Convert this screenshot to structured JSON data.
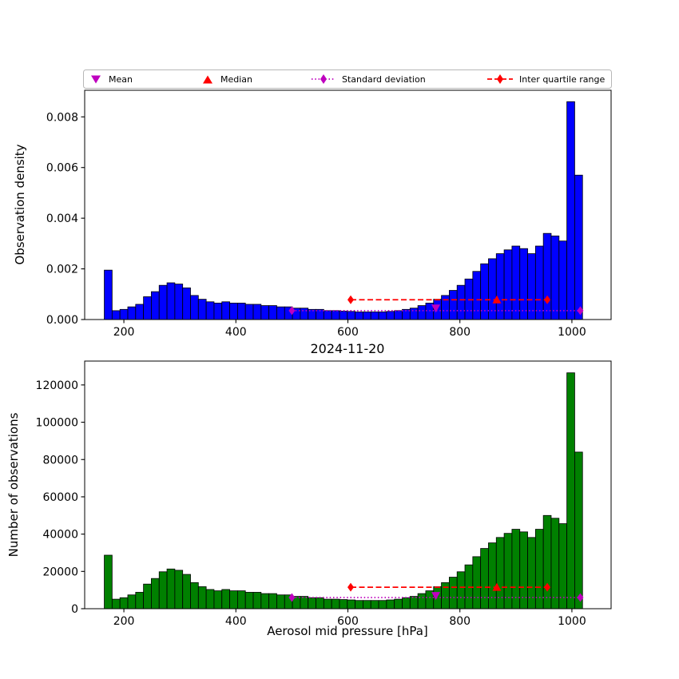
{
  "figure": {
    "title": "2024-11-20",
    "xlabel": "Aerosol mid pressure [hPa]",
    "top_ylabel": "Observation density",
    "bottom_ylabel": "Number of observations"
  },
  "legend": {
    "items": [
      {
        "label": "Mean",
        "marker": "triangle-down-icon",
        "color": "#bf00bf"
      },
      {
        "label": "Median",
        "marker": "triangle-up-icon",
        "color": "#ff0000"
      },
      {
        "label": "Standard deviation",
        "marker": "diamond-dotted-line-icon",
        "color": "#bf00bf"
      },
      {
        "label": "Inter quartile range",
        "marker": "diamond-dashed-line-icon",
        "color": "#ff0000"
      }
    ]
  },
  "chart_data": [
    {
      "type": "bar",
      "name": "observation-density-histogram",
      "ylabel": "Observation density",
      "bar_color": "#0000ff",
      "edge_color": "#000000",
      "bin_start": 165,
      "bin_width": 14,
      "values": [
        0.00195,
        0.00035,
        0.0004,
        0.0005,
        0.0006,
        0.0009,
        0.0011,
        0.00135,
        0.00145,
        0.0014,
        0.00125,
        0.00095,
        0.0008,
        0.0007,
        0.00065,
        0.0007,
        0.00065,
        0.00065,
        0.0006,
        0.0006,
        0.00055,
        0.00055,
        0.0005,
        0.0005,
        0.00045,
        0.00045,
        0.0004,
        0.0004,
        0.00035,
        0.00035,
        0.00033,
        0.00032,
        0.0003,
        0.0003,
        0.0003,
        0.0003,
        0.00032,
        0.00035,
        0.0004,
        0.00045,
        0.00055,
        0.00065,
        0.0008,
        0.00095,
        0.00115,
        0.00135,
        0.0016,
        0.0019,
        0.0022,
        0.0024,
        0.0026,
        0.00275,
        0.0029,
        0.0028,
        0.0026,
        0.0029,
        0.0034,
        0.0033,
        0.0031,
        0.0086,
        0.0057
      ],
      "xlim": [
        130,
        1070
      ],
      "ylim": [
        0,
        0.00905
      ],
      "xticks": [
        200,
        400,
        600,
        800,
        1000
      ],
      "xtick_labels": [
        "200",
        "400",
        "600",
        "800",
        "1000"
      ],
      "yticks": [
        0,
        0.002,
        0.004,
        0.006,
        0.008
      ],
      "ytick_labels": [
        "0.000",
        "0.002",
        "0.004",
        "0.006",
        "0.008"
      ],
      "stats": {
        "mean": {
          "x": 757,
          "y": 0.00045
        },
        "median": {
          "x": 866,
          "y": 0.00078
        },
        "std_range": {
          "x1": 500,
          "x2": 1015,
          "y": 0.00035
        },
        "iqr_range": {
          "x1": 605,
          "x2": 956,
          "y": 0.00078
        }
      }
    },
    {
      "type": "bar",
      "name": "number-of-observations-histogram",
      "ylabel": "Number of observations",
      "bar_color": "#008000",
      "edge_color": "#000000",
      "bin_start": 165,
      "bin_width": 14,
      "values": [
        28700,
        5100,
        5900,
        7400,
        8800,
        13200,
        16200,
        19800,
        21300,
        20600,
        18400,
        14000,
        11800,
        10300,
        9600,
        10300,
        9600,
        9600,
        8800,
        8800,
        8100,
        8100,
        7400,
        7400,
        6600,
        6600,
        5900,
        5900,
        5100,
        5100,
        4900,
        4700,
        4400,
        4400,
        4400,
        4400,
        4700,
        5100,
        5900,
        6600,
        8100,
        9600,
        11800,
        14000,
        16900,
        19800,
        23500,
        27900,
        32300,
        35300,
        38200,
        40400,
        42600,
        41200,
        38200,
        42600,
        50000,
        48500,
        45600,
        126500,
        84000
      ],
      "xlim": [
        130,
        1070
      ],
      "ylim": [
        0,
        132800
      ],
      "xticks": [
        200,
        400,
        600,
        800,
        1000
      ],
      "xtick_labels": [
        "200",
        "400",
        "600",
        "800",
        "1000"
      ],
      "yticks": [
        0,
        20000,
        40000,
        60000,
        80000,
        100000,
        120000
      ],
      "ytick_labels": [
        "0",
        "20000",
        "40000",
        "60000",
        "80000",
        "100000",
        "120000"
      ],
      "stats": {
        "mean": {
          "x": 757,
          "y": 7000
        },
        "median": {
          "x": 866,
          "y": 11500
        },
        "std_range": {
          "x1": 500,
          "x2": 1015,
          "y": 6000
        },
        "iqr_range": {
          "x1": 605,
          "x2": 956,
          "y": 11500
        }
      }
    }
  ],
  "style": {
    "mean_color": "#bf00bf",
    "median_color": "#ff0000",
    "std_color": "#bf00bf",
    "iqr_color": "#ff0000"
  }
}
